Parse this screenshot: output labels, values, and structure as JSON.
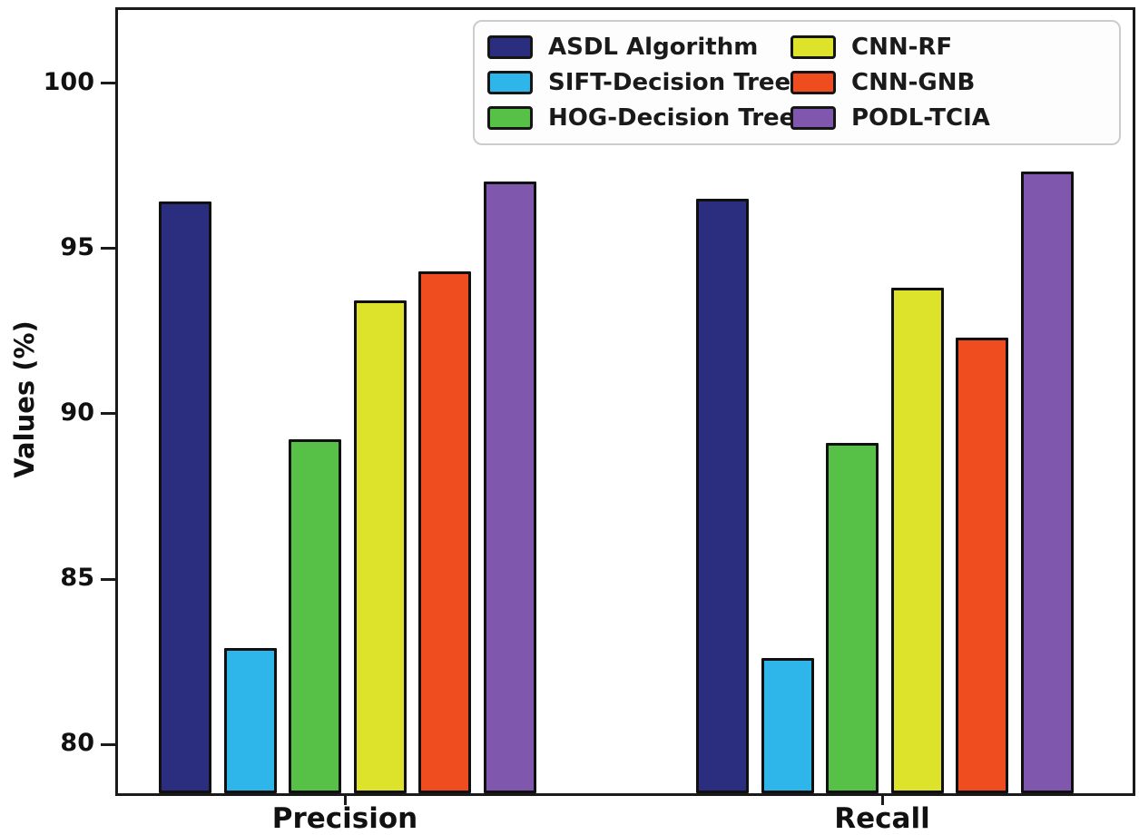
{
  "figure": {
    "background": "#ffffff",
    "frame_color": "#1a1a1a",
    "text_color": "#111111",
    "bar_edge_color": "#101010"
  },
  "axes": {
    "y_label": "Values (%)",
    "y_tick_labels": [
      "80",
      "85",
      "90",
      "95",
      "100"
    ],
    "x_category_labels": [
      "Precision",
      "Recall"
    ]
  },
  "chart_data": {
    "type": "bar",
    "title": "",
    "xlabel": "",
    "ylabel": "Values (%)",
    "categories": [
      "Precision",
      "Recall"
    ],
    "series": [
      {
        "name": "ASDL Algorithm",
        "color": "#2b2e7e",
        "values": [
          96.5,
          96.6
        ]
      },
      {
        "name": "SIFT-Decision Tree",
        "color": "#2eb5ea",
        "values": [
          83.0,
          82.7
        ]
      },
      {
        "name": "HOG-Decision Tree",
        "color": "#57c147",
        "values": [
          89.3,
          89.2
        ]
      },
      {
        "name": "CNN-RF",
        "color": "#dde22b",
        "values": [
          93.5,
          93.9
        ]
      },
      {
        "name": "CNN-GNB",
        "color": "#ef4c20",
        "values": [
          94.4,
          92.4
        ]
      },
      {
        "name": "PODL-TCIA",
        "color": "#7f58ad",
        "values": [
          97.1,
          97.4
        ]
      }
    ],
    "y_ticks": [
      80,
      85,
      90,
      95,
      100
    ],
    "ylim": [
      78.6,
      102.3
    ],
    "grid": false,
    "legend_position": "upper center-right, 2 columns, inside plot"
  }
}
